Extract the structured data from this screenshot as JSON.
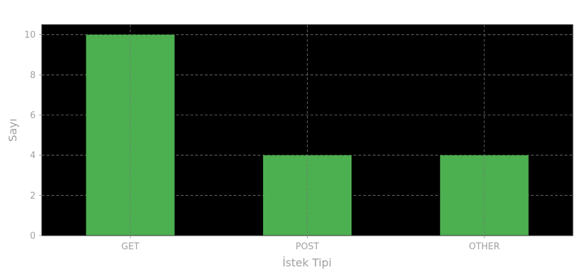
{
  "chart_data": {
    "type": "bar",
    "categories": [
      "GET",
      "POST",
      "OTHER"
    ],
    "values": [
      10,
      4,
      4
    ],
    "xlabel": "İstek Tipi",
    "ylabel": "Sayı",
    "ylim": [
      0,
      10.5
    ],
    "yticks": [
      0,
      2,
      4,
      6,
      8,
      10
    ],
    "grid": true,
    "legend": "none",
    "colors": {
      "plot_background": "#000000",
      "bar": "#4caf50",
      "grid": "#7a7a7a",
      "text": "#a0a0a0",
      "spine": "#333333"
    }
  }
}
